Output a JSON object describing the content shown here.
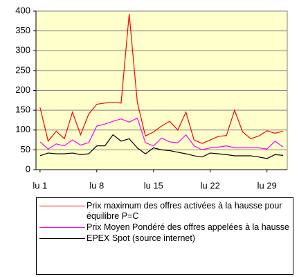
{
  "chart_data": {
    "type": "line",
    "categories": [
      "lu 1",
      null,
      null,
      null,
      null,
      null,
      null,
      "lu 8",
      null,
      null,
      null,
      null,
      null,
      null,
      "lu 15",
      null,
      null,
      null,
      null,
      null,
      null,
      "lu 22",
      null,
      null,
      null,
      null,
      null,
      null,
      "lu 29",
      null,
      null
    ],
    "series": [
      {
        "name": "Prix maximum des offres activées à la hausse pour équilibre P=C",
        "color": "#ff0000",
        "values": [
          157,
          72,
          97,
          78,
          145,
          88,
          140,
          165,
          168,
          170,
          168,
          393,
          170,
          85,
          95,
          110,
          122,
          100,
          145,
          75,
          66,
          75,
          84,
          86,
          150,
          95,
          78,
          85,
          98,
          92,
          97
        ]
      },
      {
        "name": "Prix Moyen Pondéré des offres appelées à la hausse",
        "color": "#ff00ff",
        "values": [
          70,
          52,
          65,
          60,
          75,
          62,
          68,
          110,
          115,
          122,
          128,
          120,
          130,
          68,
          60,
          80,
          70,
          68,
          88,
          60,
          50,
          55,
          57,
          60,
          55,
          55,
          55,
          55,
          52,
          72,
          57
        ]
      },
      {
        "name": "EPEX Spot (source internet)",
        "color": "#000000",
        "values": [
          35,
          42,
          40,
          40,
          42,
          38,
          40,
          60,
          60,
          88,
          72,
          78,
          55,
          40,
          55,
          50,
          48,
          44,
          40,
          35,
          32,
          42,
          40,
          38,
          35,
          35,
          35,
          32,
          28,
          38,
          36
        ]
      }
    ],
    "ylim": [
      0,
      400
    ],
    "yticks": [
      0,
      50,
      100,
      150,
      200,
      250,
      300,
      350,
      400
    ],
    "grid": true,
    "plot_color": "#ffffcc"
  }
}
